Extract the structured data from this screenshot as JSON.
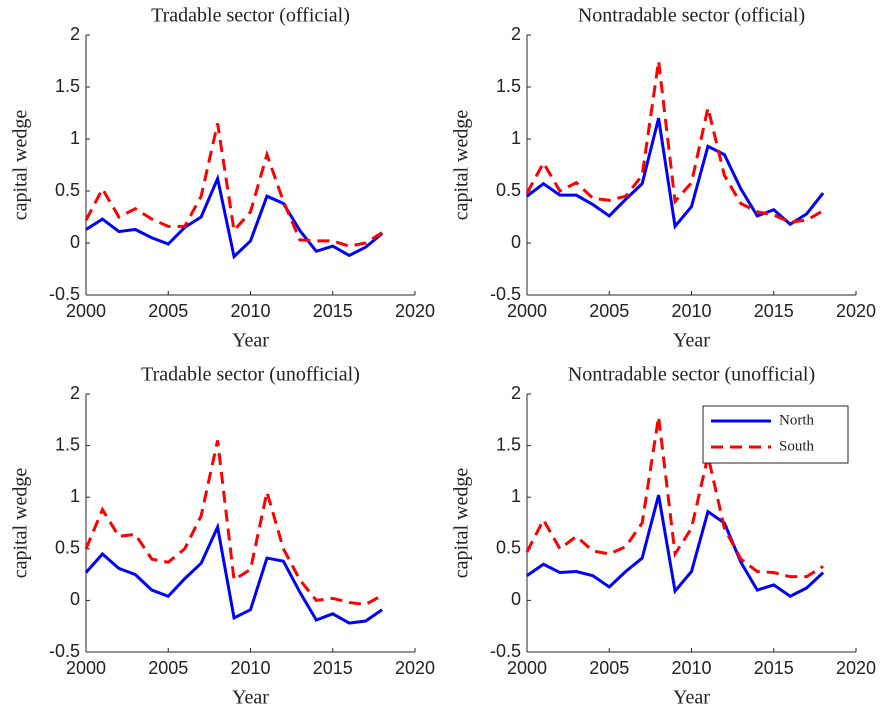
{
  "chart_data": [
    {
      "type": "line",
      "title": "Tradable sector (official)",
      "xlabel": "Year",
      "ylabel": "capital wedge",
      "x": [
        2000,
        2001,
        2002,
        2003,
        2004,
        2005,
        2006,
        2007,
        2008,
        2009,
        2010,
        2011,
        2012,
        2013,
        2014,
        2015,
        2016,
        2017,
        2018
      ],
      "series": [
        {
          "name": "North",
          "color": "#0000ff",
          "dash": "solid",
          "values": [
            0.13,
            0.23,
            0.11,
            0.13,
            0.05,
            -0.01,
            0.15,
            0.25,
            0.62,
            -0.13,
            0.02,
            0.45,
            0.38,
            0.12,
            -0.08,
            -0.03,
            -0.12,
            -0.04,
            0.09
          ]
        },
        {
          "name": "South",
          "color": "#ff0000",
          "dash": "dashed",
          "values": [
            0.22,
            0.52,
            0.25,
            0.33,
            0.23,
            0.16,
            0.16,
            0.45,
            1.15,
            0.12,
            0.3,
            0.85,
            0.4,
            0.03,
            0.02,
            0.02,
            -0.03,
            0.0,
            0.1
          ]
        }
      ],
      "xlim": [
        2000,
        2020
      ],
      "ylim": [
        -0.5,
        2
      ],
      "xticks": [
        2000,
        2005,
        2010,
        2015,
        2020
      ],
      "yticks": [
        -0.5,
        0,
        0.5,
        1,
        1.5,
        2
      ]
    },
    {
      "type": "line",
      "title": "Nontradable sector (official)",
      "xlabel": "Year",
      "ylabel": "capital wedge",
      "x": [
        2000,
        2001,
        2002,
        2003,
        2004,
        2005,
        2006,
        2007,
        2008,
        2009,
        2010,
        2011,
        2012,
        2013,
        2014,
        2015,
        2016,
        2017,
        2018
      ],
      "series": [
        {
          "name": "North",
          "color": "#0000ff",
          "dash": "solid",
          "values": [
            0.45,
            0.57,
            0.46,
            0.46,
            0.37,
            0.26,
            0.42,
            0.57,
            1.2,
            0.16,
            0.35,
            0.93,
            0.85,
            0.52,
            0.26,
            0.32,
            0.18,
            0.28,
            0.48
          ]
        },
        {
          "name": "South",
          "color": "#ff0000",
          "dash": "dashed",
          "values": [
            0.48,
            0.77,
            0.5,
            0.58,
            0.43,
            0.41,
            0.45,
            0.65,
            1.75,
            0.4,
            0.58,
            1.3,
            0.65,
            0.38,
            0.3,
            0.27,
            0.2,
            0.22,
            0.31
          ]
        }
      ],
      "xlim": [
        2000,
        2020
      ],
      "ylim": [
        -0.5,
        2
      ],
      "xticks": [
        2000,
        2005,
        2010,
        2015,
        2020
      ],
      "yticks": [
        -0.5,
        0,
        0.5,
        1,
        1.5,
        2
      ]
    },
    {
      "type": "line",
      "title": "Tradable sector (unofficial)",
      "xlabel": "Year",
      "ylabel": "capital wedge",
      "x": [
        2000,
        2001,
        2002,
        2003,
        2004,
        2005,
        2006,
        2007,
        2008,
        2009,
        2010,
        2011,
        2012,
        2013,
        2014,
        2015,
        2016,
        2017,
        2018
      ],
      "series": [
        {
          "name": "North",
          "color": "#0000ff",
          "dash": "solid",
          "values": [
            0.27,
            0.45,
            0.31,
            0.25,
            0.1,
            0.04,
            0.21,
            0.36,
            0.71,
            -0.17,
            -0.09,
            0.41,
            0.38,
            0.08,
            -0.19,
            -0.13,
            -0.22,
            -0.2,
            -0.09
          ]
        },
        {
          "name": "South",
          "color": "#ff0000",
          "dash": "dashed",
          "values": [
            0.5,
            0.88,
            0.62,
            0.64,
            0.4,
            0.37,
            0.5,
            0.82,
            1.55,
            0.2,
            0.3,
            1.05,
            0.5,
            0.2,
            0.0,
            0.02,
            -0.02,
            -0.04,
            0.05
          ]
        }
      ],
      "xlim": [
        2000,
        2020
      ],
      "ylim": [
        -0.5,
        2
      ],
      "xticks": [
        2000,
        2005,
        2010,
        2015,
        2020
      ],
      "yticks": [
        -0.5,
        0,
        0.5,
        1,
        1.5,
        2
      ]
    },
    {
      "type": "line",
      "title": "Nontradable sector (unofficial)",
      "xlabel": "Year",
      "ylabel": "capital wedge",
      "x": [
        2000,
        2001,
        2002,
        2003,
        2004,
        2005,
        2006,
        2007,
        2008,
        2009,
        2010,
        2011,
        2012,
        2013,
        2014,
        2015,
        2016,
        2017,
        2018
      ],
      "series": [
        {
          "name": "North",
          "color": "#0000ff",
          "dash": "solid",
          "values": [
            0.24,
            0.35,
            0.27,
            0.28,
            0.24,
            0.13,
            0.28,
            0.41,
            1.02,
            0.09,
            0.28,
            0.86,
            0.75,
            0.37,
            0.1,
            0.15,
            0.04,
            0.12,
            0.27
          ]
        },
        {
          "name": "South",
          "color": "#ff0000",
          "dash": "dashed",
          "values": [
            0.47,
            0.78,
            0.5,
            0.62,
            0.48,
            0.45,
            0.52,
            0.75,
            1.78,
            0.45,
            0.7,
            1.4,
            0.7,
            0.4,
            0.28,
            0.27,
            0.23,
            0.23,
            0.33
          ]
        }
      ],
      "xlim": [
        2000,
        2020
      ],
      "ylim": [
        -0.5,
        2
      ],
      "xticks": [
        2000,
        2005,
        2010,
        2015,
        2020
      ],
      "yticks": [
        -0.5,
        0,
        0.5,
        1,
        1.5,
        2
      ],
      "legend": "upper right"
    }
  ]
}
